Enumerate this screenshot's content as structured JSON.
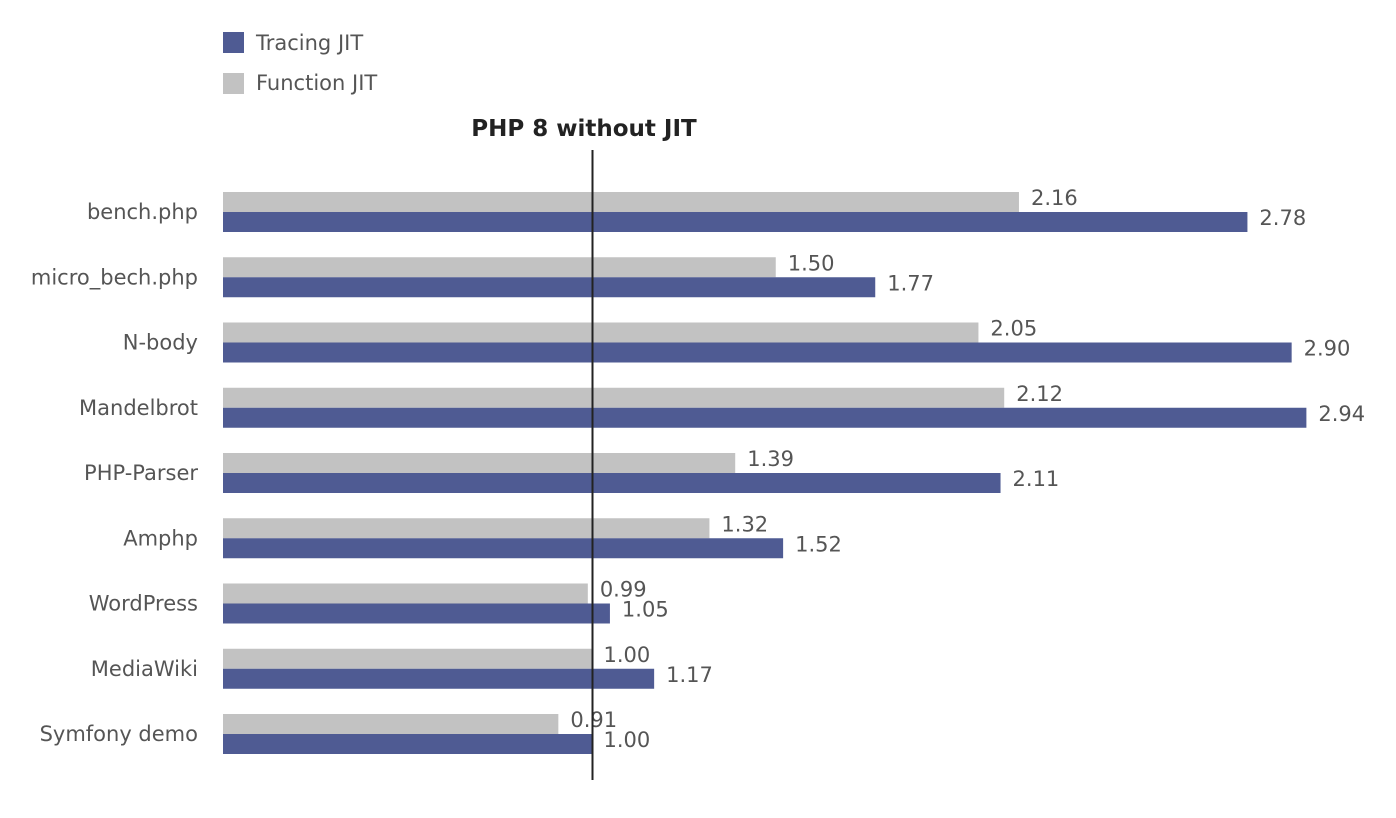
{
  "chart_data": {
    "type": "bar",
    "orientation": "horizontal",
    "title": "",
    "xlabel": "",
    "ylabel": "",
    "baseline": {
      "value": 1.0,
      "label": "PHP 8 without JIT"
    },
    "categories": [
      "bench.php",
      "micro_bech.php",
      "N-body",
      "Mandelbrot",
      "PHP-Parser",
      "Amphp",
      "WordPress",
      "MediaWiki",
      "Symfony demo"
    ],
    "series": [
      {
        "name": "Function JIT",
        "color": "#c2c2c2",
        "values": [
          2.16,
          1.5,
          2.05,
          2.12,
          1.39,
          1.32,
          0.99,
          1.0,
          0.91
        ],
        "labels": [
          "2.16",
          "1.50",
          "2.05",
          "2.12",
          "1.39",
          "1.32",
          "0.99",
          "1.00",
          "0.91"
        ]
      },
      {
        "name": "Tracing JIT",
        "color": "#4f5b93",
        "values": [
          2.78,
          1.77,
          2.9,
          2.94,
          2.11,
          1.52,
          1.05,
          1.17,
          1.0
        ],
        "labels": [
          "2.78",
          "1.77",
          "2.90",
          "2.94",
          "2.11",
          "1.52",
          "1.05",
          "1.17",
          "1.00"
        ]
      }
    ],
    "legend": {
      "placement": "top-left",
      "entries": [
        {
          "label": "Tracing JIT",
          "color": "#4f5b93"
        },
        {
          "label": "Function JIT",
          "color": "#c2c2c2"
        }
      ]
    },
    "xlim": [
      0,
      3.0
    ],
    "grid": false
  }
}
